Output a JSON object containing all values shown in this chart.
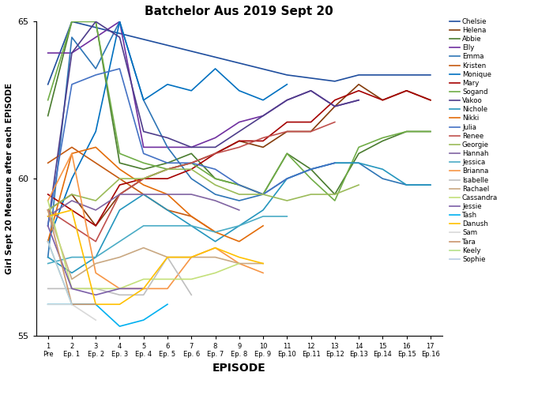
{
  "title": "Batchelor Aus 2019 Sept 20",
  "xlabel": "EPISODE",
  "ylabel": "Girl Sept 20 Measure after each EPISODE",
  "ylim": [
    55,
    65
  ],
  "yticks": [
    55,
    60,
    65
  ],
  "x_labels": [
    "1\nPre",
    "2\nEp. 1",
    "3\nEp. 2",
    "4\nEp. 3",
    "5\nEp. 4",
    "6\nEp. 5",
    "7\nEp. 6",
    "8\nEp. 7",
    "9\nEp. 8",
    "10\nEp. 9",
    "11\nEp.10",
    "12\nEp.11",
    "13\nEp.12",
    "14\nEp.13",
    "15\nEp.14",
    "16\nEp.15",
    "17\nEp.16"
  ],
  "series": [
    {
      "name": "Chelsie",
      "color": "#1f4e9e",
      "data": [
        [
          1,
          63.0
        ],
        [
          2,
          65.0
        ],
        [
          11,
          63.3
        ],
        [
          12,
          63.2
        ],
        [
          13,
          63.1
        ],
        [
          14,
          63.3
        ],
        [
          15,
          63.3
        ],
        [
          16,
          63.3
        ],
        [
          17,
          63.3
        ]
      ]
    },
    {
      "name": "Helena",
      "color": "#843c0c",
      "data": [
        [
          1,
          59.0
        ],
        [
          2,
          59.5
        ],
        [
          3,
          58.5
        ],
        [
          4,
          59.5
        ],
        [
          5,
          60.0
        ],
        [
          6,
          60.3
        ],
        [
          7,
          60.5
        ],
        [
          8,
          60.8
        ],
        [
          9,
          61.2
        ],
        [
          10,
          61.0
        ],
        [
          11,
          61.5
        ],
        [
          12,
          61.5
        ],
        [
          13,
          62.3
        ],
        [
          14,
          63.0
        ],
        [
          15,
          62.5
        ],
        [
          16,
          62.8
        ],
        [
          17,
          62.5
        ]
      ]
    },
    {
      "name": "Abbie",
      "color": "#4a7c2f",
      "data": [
        [
          1,
          62.0
        ],
        [
          2,
          65.0
        ],
        [
          3,
          65.0
        ],
        [
          4,
          60.5
        ],
        [
          5,
          60.3
        ],
        [
          6,
          60.5
        ],
        [
          7,
          60.8
        ],
        [
          8,
          60.0
        ],
        [
          9,
          59.8
        ],
        [
          10,
          59.5
        ],
        [
          11,
          60.8
        ],
        [
          12,
          60.3
        ],
        [
          13,
          59.5
        ],
        [
          14,
          60.8
        ],
        [
          15,
          61.2
        ],
        [
          16,
          61.5
        ],
        [
          17,
          61.5
        ]
      ]
    },
    {
      "name": "Elly",
      "color": "#7030a0",
      "data": [
        [
          1,
          64.0
        ],
        [
          2,
          64.0
        ],
        [
          3,
          64.5
        ],
        [
          4,
          65.0
        ],
        [
          5,
          61.0
        ],
        [
          6,
          61.0
        ],
        [
          7,
          61.0
        ],
        [
          8,
          61.3
        ],
        [
          9,
          61.8
        ],
        [
          10,
          62.0
        ],
        [
          11,
          62.5
        ],
        [
          12,
          62.8
        ],
        [
          13,
          62.3
        ],
        [
          14,
          62.5
        ]
      ]
    },
    {
      "name": "Emma",
      "color": "#2e75b6",
      "data": [
        [
          1,
          57.5
        ],
        [
          2,
          64.5
        ],
        [
          3,
          63.5
        ],
        [
          4,
          65.0
        ],
        [
          5,
          62.5
        ],
        [
          6,
          61.0
        ],
        [
          7,
          60.0
        ],
        [
          8,
          59.5
        ],
        [
          9,
          59.3
        ],
        [
          10,
          59.5
        ],
        [
          11,
          60.0
        ],
        [
          12,
          60.3
        ],
        [
          13,
          60.5
        ],
        [
          14,
          60.5
        ],
        [
          15,
          60.0
        ],
        [
          16,
          59.8
        ],
        [
          17,
          59.8
        ]
      ]
    },
    {
      "name": "Kristen",
      "color": "#c55a11",
      "data": [
        [
          1,
          60.5
        ],
        [
          2,
          61.0
        ],
        [
          3,
          60.5
        ],
        [
          4,
          60.0
        ],
        [
          5,
          59.5
        ],
        [
          6,
          59.0
        ],
        [
          7,
          58.8
        ],
        [
          8,
          58.3
        ]
      ]
    },
    {
      "name": "Monique",
      "color": "#0070c0",
      "data": [
        [
          1,
          58.0
        ],
        [
          2,
          60.0
        ],
        [
          3,
          61.5
        ],
        [
          4,
          65.0
        ],
        [
          5,
          62.5
        ],
        [
          6,
          63.0
        ],
        [
          7,
          62.8
        ],
        [
          8,
          63.5
        ],
        [
          9,
          62.8
        ],
        [
          10,
          62.5
        ],
        [
          11,
          63.0
        ]
      ]
    },
    {
      "name": "Mary",
      "color": "#a50000",
      "data": [
        [
          1,
          59.5
        ],
        [
          2,
          59.0
        ],
        [
          3,
          58.5
        ],
        [
          4,
          59.8
        ],
        [
          5,
          60.0
        ],
        [
          6,
          60.0
        ],
        [
          7,
          60.3
        ],
        [
          8,
          60.8
        ],
        [
          9,
          61.2
        ],
        [
          10,
          61.2
        ],
        [
          11,
          61.8
        ],
        [
          12,
          61.8
        ],
        [
          13,
          62.5
        ],
        [
          14,
          62.8
        ],
        [
          15,
          62.5
        ],
        [
          16,
          62.8
        ],
        [
          17,
          62.5
        ]
      ]
    },
    {
      "name": "Sogand",
      "color": "#70ad47",
      "data": [
        [
          1,
          62.5
        ],
        [
          2,
          65.0
        ],
        [
          3,
          65.0
        ],
        [
          4,
          60.8
        ],
        [
          5,
          60.5
        ],
        [
          6,
          60.3
        ],
        [
          7,
          60.5
        ],
        [
          8,
          60.0
        ],
        [
          9,
          59.8
        ],
        [
          10,
          59.5
        ],
        [
          11,
          60.8
        ],
        [
          12,
          60.0
        ],
        [
          13,
          59.3
        ],
        [
          14,
          61.0
        ],
        [
          15,
          61.3
        ],
        [
          16,
          61.5
        ],
        [
          17,
          61.5
        ]
      ]
    },
    {
      "name": "Vakoo",
      "color": "#4e3d8b",
      "data": [
        [
          1,
          58.5
        ],
        [
          2,
          64.0
        ],
        [
          3,
          65.0
        ],
        [
          4,
          64.5
        ],
        [
          5,
          61.5
        ],
        [
          6,
          61.3
        ],
        [
          7,
          61.0
        ],
        [
          8,
          61.0
        ],
        [
          9,
          61.5
        ],
        [
          10,
          62.0
        ],
        [
          11,
          62.5
        ],
        [
          12,
          62.8
        ],
        [
          13,
          62.3
        ],
        [
          14,
          62.5
        ]
      ]
    },
    {
      "name": "Nichole",
      "color": "#2596be",
      "data": [
        [
          1,
          57.5
        ],
        [
          2,
          57.0
        ],
        [
          3,
          57.5
        ],
        [
          4,
          59.0
        ],
        [
          5,
          59.5
        ],
        [
          6,
          59.0
        ],
        [
          7,
          58.5
        ],
        [
          8,
          58.0
        ],
        [
          9,
          58.5
        ],
        [
          10,
          59.0
        ],
        [
          11,
          60.0
        ],
        [
          12,
          60.3
        ],
        [
          13,
          60.5
        ],
        [
          14,
          60.5
        ],
        [
          15,
          60.3
        ],
        [
          16,
          59.8
        ],
        [
          17,
          59.8
        ]
      ]
    },
    {
      "name": "Nikki",
      "color": "#e36c09",
      "data": [
        [
          1,
          58.0
        ],
        [
          2,
          60.8
        ],
        [
          3,
          61.0
        ],
        [
          4,
          60.3
        ],
        [
          5,
          59.8
        ],
        [
          6,
          59.5
        ],
        [
          7,
          58.8
        ],
        [
          8,
          58.3
        ],
        [
          9,
          58.0
        ],
        [
          10,
          58.5
        ]
      ]
    },
    {
      "name": "Julia",
      "color": "#4472c4",
      "data": [
        [
          1,
          58.5
        ],
        [
          2,
          63.0
        ],
        [
          3,
          63.3
        ],
        [
          4,
          63.5
        ],
        [
          5,
          60.8
        ],
        [
          6,
          60.5
        ],
        [
          7,
          60.5
        ],
        [
          8,
          60.3
        ],
        [
          9,
          59.8
        ],
        [
          10,
          59.5
        ],
        [
          11,
          60.0
        ],
        [
          12,
          60.3
        ],
        [
          13,
          60.5
        ]
      ]
    },
    {
      "name": "Renee",
      "color": "#c0504d",
      "data": [
        [
          1,
          59.0
        ],
        [
          2,
          58.5
        ],
        [
          3,
          58.0
        ],
        [
          4,
          59.5
        ],
        [
          5,
          60.0
        ],
        [
          6,
          60.3
        ],
        [
          7,
          60.5
        ],
        [
          8,
          60.8
        ],
        [
          9,
          61.0
        ],
        [
          10,
          61.3
        ],
        [
          11,
          61.5
        ],
        [
          12,
          61.5
        ],
        [
          13,
          61.8
        ]
      ]
    },
    {
      "name": "Georgie",
      "color": "#9bbb59",
      "data": [
        [
          1,
          59.0
        ],
        [
          2,
          59.5
        ],
        [
          3,
          59.3
        ],
        [
          4,
          60.0
        ],
        [
          5,
          60.0
        ],
        [
          6,
          60.3
        ],
        [
          7,
          60.3
        ],
        [
          8,
          59.8
        ],
        [
          9,
          59.5
        ],
        [
          10,
          59.5
        ],
        [
          11,
          59.3
        ],
        [
          12,
          59.5
        ],
        [
          13,
          59.5
        ],
        [
          14,
          59.8
        ]
      ]
    },
    {
      "name": "Hannah",
      "color": "#8064a2",
      "data": [
        [
          1,
          58.8
        ],
        [
          2,
          59.3
        ],
        [
          3,
          59.0
        ],
        [
          4,
          59.5
        ],
        [
          5,
          59.5
        ],
        [
          6,
          59.5
        ],
        [
          7,
          59.5
        ],
        [
          8,
          59.3
        ],
        [
          9,
          59.0
        ]
      ]
    },
    {
      "name": "Jessica",
      "color": "#4bacc6",
      "data": [
        [
          1,
          57.3
        ],
        [
          2,
          57.5
        ],
        [
          3,
          57.5
        ],
        [
          4,
          58.0
        ],
        [
          5,
          58.5
        ],
        [
          6,
          58.5
        ],
        [
          7,
          58.5
        ],
        [
          8,
          58.3
        ],
        [
          9,
          58.5
        ],
        [
          10,
          58.8
        ],
        [
          11,
          58.8
        ]
      ]
    },
    {
      "name": "Brianna",
      "color": "#f79646",
      "data": [
        [
          1,
          59.3
        ],
        [
          2,
          60.8
        ],
        [
          3,
          57.0
        ],
        [
          4,
          56.5
        ],
        [
          5,
          56.5
        ],
        [
          6,
          56.5
        ],
        [
          7,
          57.5
        ],
        [
          8,
          57.8
        ],
        [
          9,
          57.3
        ],
        [
          10,
          57.0
        ]
      ]
    },
    {
      "name": "Isabelle",
      "color": "#bfbfbf",
      "data": [
        [
          1,
          56.5
        ],
        [
          2,
          56.5
        ],
        [
          3,
          56.5
        ],
        [
          4,
          56.3
        ],
        [
          5,
          56.3
        ],
        [
          6,
          57.5
        ],
        [
          7,
          56.3
        ]
      ]
    },
    {
      "name": "Rachael",
      "color": "#c9a882",
      "data": [
        [
          1,
          59.0
        ],
        [
          2,
          56.8
        ],
        [
          3,
          57.3
        ],
        [
          4,
          57.5
        ],
        [
          5,
          57.8
        ],
        [
          6,
          57.5
        ],
        [
          7,
          57.5
        ],
        [
          8,
          57.5
        ],
        [
          9,
          57.3
        ],
        [
          10,
          57.3
        ]
      ]
    },
    {
      "name": "Cassandra",
      "color": "#c4e07a",
      "data": [
        [
          1,
          59.3
        ],
        [
          2,
          56.5
        ],
        [
          3,
          56.5
        ],
        [
          4,
          56.5
        ],
        [
          5,
          56.8
        ],
        [
          6,
          56.8
        ],
        [
          7,
          56.8
        ],
        [
          8,
          57.0
        ],
        [
          9,
          57.3
        ]
      ]
    },
    {
      "name": "Jessie",
      "color": "#7b5ea7",
      "data": [
        [
          1,
          58.5
        ],
        [
          2,
          56.5
        ],
        [
          3,
          56.3
        ],
        [
          4,
          56.5
        ],
        [
          5,
          56.5
        ]
      ]
    },
    {
      "name": "Tash",
      "color": "#00b0f0",
      "data": [
        [
          1,
          56.0
        ],
        [
          2,
          56.0
        ],
        [
          3,
          56.0
        ],
        [
          4,
          55.3
        ],
        [
          5,
          55.5
        ],
        [
          6,
          56.0
        ]
      ]
    },
    {
      "name": "Danush",
      "color": "#ffc000",
      "data": [
        [
          1,
          58.8
        ],
        [
          2,
          59.0
        ],
        [
          3,
          56.0
        ],
        [
          4,
          56.0
        ],
        [
          5,
          56.5
        ],
        [
          6,
          57.5
        ],
        [
          7,
          57.5
        ],
        [
          8,
          57.8
        ],
        [
          9,
          57.5
        ],
        [
          10,
          57.3
        ]
      ]
    },
    {
      "name": "Sam",
      "color": "#d9d9d9",
      "data": [
        [
          1,
          56.0
        ],
        [
          2,
          56.0
        ],
        [
          3,
          55.5
        ]
      ]
    },
    {
      "name": "Tara",
      "color": "#c9956c",
      "data": [
        [
          1,
          59.0
        ],
        [
          2,
          56.0
        ],
        [
          3,
          56.0
        ]
      ]
    },
    {
      "name": "Keely",
      "color": "#b5e08a",
      "data": [
        [
          1,
          58.0
        ],
        [
          2,
          56.0
        ]
      ]
    },
    {
      "name": "Sophie",
      "color": "#b8cce4",
      "data": [
        [
          1,
          58.0
        ],
        [
          2,
          56.0
        ]
      ]
    }
  ]
}
